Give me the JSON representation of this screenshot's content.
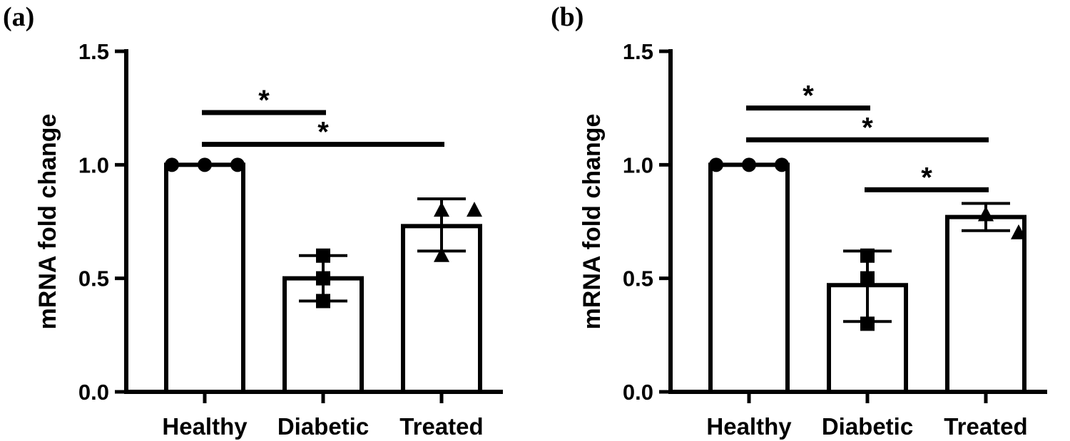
{
  "chart_data": [
    {
      "panel_label": "(a)",
      "type": "bar",
      "ylabel": "mRNA fold change",
      "ylim": [
        0,
        1.5
      ],
      "yticks": [
        "0.0",
        "0.5",
        "1.0",
        "1.5"
      ],
      "categories": [
        "Healthy",
        "Diabetic",
        "Treated"
      ],
      "means": [
        1.0,
        0.5,
        0.73
      ],
      "error_low": [
        1.0,
        0.4,
        0.62
      ],
      "error_high": [
        1.0,
        0.6,
        0.85
      ],
      "markers": [
        "circle",
        "square",
        "triangle"
      ],
      "points": [
        [
          1.0,
          1.0,
          1.0
        ],
        [
          0.6,
          0.5,
          0.4
        ],
        [
          0.8,
          0.8,
          0.6
        ]
      ],
      "significance": [
        {
          "from": 0,
          "to": 1,
          "y": 1.23,
          "label": "*"
        },
        {
          "from": 0,
          "to": 2,
          "y": 1.09,
          "label": "*"
        }
      ]
    },
    {
      "panel_label": "(b)",
      "type": "bar",
      "ylabel": "mRNA fold change",
      "ylim": [
        0,
        1.5
      ],
      "yticks": [
        "0.0",
        "0.5",
        "1.0",
        "1.5"
      ],
      "categories": [
        "Healthy",
        "Diabetic",
        "Treated"
      ],
      "means": [
        1.0,
        0.47,
        0.77
      ],
      "error_low": [
        1.0,
        0.31,
        0.71
      ],
      "error_high": [
        1.0,
        0.62,
        0.83
      ],
      "markers": [
        "circle",
        "square",
        "triangle"
      ],
      "points": [
        [
          1.0,
          1.0,
          1.0
        ],
        [
          0.6,
          0.5,
          0.3
        ],
        [
          0.78,
          0.7,
          0.78
        ]
      ],
      "significance": [
        {
          "from": 0,
          "to": 1,
          "y": 1.25,
          "label": "*"
        },
        {
          "from": 0,
          "to": 2,
          "y": 1.11,
          "label": "*"
        },
        {
          "from": 1,
          "to": 2,
          "y": 0.89,
          "label": "*"
        }
      ]
    }
  ]
}
